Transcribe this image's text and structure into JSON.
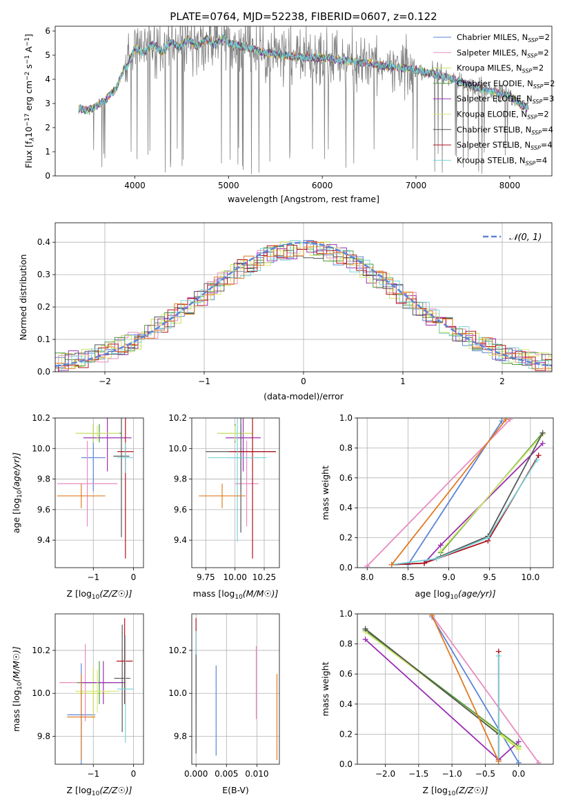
{
  "figure": {
    "title": "PLATE=0764, MJD=52238, FIBERID=0607, z=0.122"
  },
  "colors": {
    "Chabrier MILES": "#5b84d6",
    "Salpeter MILES": "#e88ac0",
    "Kroupa MILES": "#c6e05a",
    "Chabrier ELODIE": "#4f9a3a",
    "Salpeter ELODIE": "#9a2fb3",
    "Kroupa ELODIE": "#d7e77a",
    "Chabrier STELIB": "#555555",
    "Salpeter STELIB": "#b3101b",
    "Kroupa STELIB": "#76d3d9",
    "data": "#808080",
    "normal": "#5b84d6",
    "extra": "#e07a22"
  },
  "chart_data": [
    {
      "id": "spectrum",
      "type": "line",
      "xlabel": "wavelength [Angstrom, rest frame]",
      "ylabel": "Flux [f_λ 10^-17 erg cm^-2 s^-1 A^-1]",
      "xlim": [
        3150,
        8450
      ],
      "ylim": [
        0,
        6.2
      ],
      "xticks": [
        4000,
        5000,
        6000,
        7000,
        8000
      ],
      "yticks": [
        0,
        1,
        2,
        3,
        4,
        5,
        6
      ],
      "legend_loc": "upper right",
      "legend": [
        {
          "name": "Chabrier MILES",
          "sub": "SSP",
          "n": "2"
        },
        {
          "name": "Salpeter MILES",
          "sub": "SSP",
          "n": "2"
        },
        {
          "name": "Kroupa MILES",
          "sub": "SSP",
          "n": "2"
        },
        {
          "name": "Chabrier ELODIE",
          "sub": "SSP",
          "n": "2"
        },
        {
          "name": "Salpeter ELODIE",
          "sub": "SSP",
          "n": "3"
        },
        {
          "name": "Kroupa ELODIE",
          "sub": "SSP",
          "n": "2"
        },
        {
          "name": "Chabrier STELIB",
          "sub": "SSP",
          "n": "4"
        },
        {
          "name": "Salpeter STELIB",
          "sub": "SSP",
          "n": "4"
        },
        {
          "name": "Kroupa STELIB",
          "sub": "SSP",
          "n": "4"
        }
      ],
      "continuum": {
        "x": [
          3400,
          3500,
          3600,
          3700,
          3800,
          3900,
          4000,
          4100,
          4300,
          4500,
          4700,
          4900,
          5000,
          5200,
          5400,
          5600,
          5800,
          6000,
          6200,
          6400,
          6600,
          6800,
          7000,
          7200,
          7400,
          7600,
          7800,
          8000,
          8100,
          8200
        ],
        "y": [
          2.8,
          2.7,
          2.9,
          3.2,
          3.6,
          4.6,
          5.1,
          5.3,
          5.3,
          5.5,
          5.5,
          5.6,
          5.5,
          5.3,
          5.1,
          5.0,
          4.9,
          4.9,
          4.8,
          4.7,
          4.6,
          4.5,
          4.4,
          4.2,
          4.0,
          3.7,
          3.5,
          3.3,
          3.0,
          2.8
        ]
      }
    },
    {
      "id": "residuals",
      "type": "histogram",
      "xlabel": "(data-model)/error",
      "ylabel": "Normed distribution",
      "xlim": [
        -2.5,
        2.5
      ],
      "ylim": [
        0,
        0.46
      ],
      "xticks": [
        -2,
        -1,
        0,
        1,
        2
      ],
      "yticks": [
        0.0,
        0.1,
        0.2,
        0.3,
        0.4
      ],
      "legend_label": "N(0,1)",
      "legend_loc": "upper right",
      "grid": true
    },
    {
      "id": "age_vs_Z",
      "type": "scatter",
      "xlabel": "Z [log10(Z/Z☉)]",
      "ylabel": "age  [log10(age/yr)]",
      "xlim": [
        -1.95,
        0.25
      ],
      "ylim": [
        9.22,
        10.2
      ],
      "xticks": [
        -1,
        0
      ],
      "yticks": [
        9.4,
        9.6,
        9.8,
        10.0,
        10.2
      ],
      "points": [
        {
          "model": "Chabrier MILES",
          "x": -1.0,
          "xerr": 0.3,
          "y": 9.94,
          "yerr": 0.22
        },
        {
          "model": "Salpeter MILES",
          "x": -1.15,
          "xerr": 0.75,
          "y": 9.77,
          "yerr": 0.28
        },
        {
          "model": "Kroupa MILES",
          "x": -1.0,
          "xerr": 0.3,
          "y": 10.1,
          "yerr": 0.06
        },
        {
          "model": "Chabrier ELODIE",
          "x": -0.85,
          "xerr": 0.55,
          "y": 10.1,
          "yerr": 0.06
        },
        {
          "model": "Salpeter ELODIE",
          "x": -0.65,
          "xerr": 0.6,
          "y": 10.07,
          "yerr": 0.22
        },
        {
          "model": "Kroupa ELODIE",
          "x": -0.9,
          "xerr": 0.55,
          "y": 10.1,
          "yerr": 0.05
        },
        {
          "model": "Chabrier STELIB",
          "x": -0.3,
          "xerr": 0.2,
          "y": 9.95,
          "yerr": 0.53
        },
        {
          "model": "Salpeter STELIB",
          "x": -0.2,
          "xerr": 0.2,
          "y": 9.98,
          "yerr": 0.7
        },
        {
          "model": "Kroupa STELIB",
          "x": -0.2,
          "xerr": 0.2,
          "y": 9.94,
          "yerr": 0.1
        },
        {
          "model": "extra",
          "x": -1.3,
          "xerr": 0.6,
          "y": 9.69,
          "yerr": 0.08
        }
      ]
    },
    {
      "id": "age_vs_mass",
      "type": "scatter",
      "xlabel": "mass [log10(M/M☉)]",
      "ylabel": "",
      "xlim": [
        9.63,
        10.38
      ],
      "ylim": [
        9.22,
        10.2
      ],
      "xticks": [
        9.75,
        10.0,
        10.25
      ],
      "yticks": [
        9.4,
        9.6,
        9.8,
        10.0,
        10.2
      ],
      "points": [
        {
          "model": "Chabrier MILES",
          "x": 10.05,
          "xerr": 0.1,
          "y": 9.94,
          "yerr": 0.22
        },
        {
          "model": "Salpeter MILES",
          "x": 10.1,
          "xerr": 0.1,
          "y": 9.77,
          "yerr": 0.28
        },
        {
          "model": "Kroupa MILES",
          "x": 10.0,
          "xerr": 0.15,
          "y": 10.1,
          "yerr": 0.06
        },
        {
          "model": "Chabrier ELODIE",
          "x": 10.0,
          "xerr": 0.15,
          "y": 10.1,
          "yerr": 0.06
        },
        {
          "model": "Salpeter ELODIE",
          "x": 10.07,
          "xerr": 0.15,
          "y": 10.07,
          "yerr": 0.22
        },
        {
          "model": "Kroupa ELODIE",
          "x": 10.0,
          "xerr": 0.15,
          "y": 10.1,
          "yerr": 0.05
        },
        {
          "model": "Chabrier STELIB",
          "x": 10.05,
          "xerr": 0.3,
          "y": 9.98,
          "yerr": 0.53
        },
        {
          "model": "Salpeter STELIB",
          "x": 10.15,
          "xerr": 0.2,
          "y": 9.98,
          "yerr": 0.7
        },
        {
          "model": "Kroupa STELIB",
          "x": 10.02,
          "xerr": 0.25,
          "y": 9.94,
          "yerr": 0.55
        },
        {
          "model": "extra",
          "x": 9.89,
          "xerr": 0.2,
          "y": 9.69,
          "yerr": 0.08
        }
      ]
    },
    {
      "id": "weight_vs_age",
      "type": "line",
      "xlabel": "age  [log10(age/yr)]",
      "ylabel": "mass weight",
      "xlim": [
        7.88,
        10.28
      ],
      "ylim": [
        0,
        1.0
      ],
      "xticks": [
        8.0,
        8.5,
        9.0,
        9.5,
        10.0
      ],
      "yticks": [
        0.0,
        0.2,
        0.4,
        0.6,
        0.8,
        1.0
      ],
      "series": [
        {
          "model": "Chabrier MILES",
          "x": [
            8.5,
            9.65
          ],
          "y": [
            0.02,
            0.98
          ]
        },
        {
          "model": "Salpeter MILES",
          "x": [
            8.0,
            9.75
          ],
          "y": [
            0.01,
            0.99
          ]
        },
        {
          "model": "Kroupa MILES",
          "x": [
            8.9,
            10.15
          ],
          "y": [
            0.1,
            0.9
          ]
        },
        {
          "model": "Chabrier ELODIE",
          "x": [
            8.9,
            10.15
          ],
          "y": [
            0.1,
            0.9
          ]
        },
        {
          "model": "Salpeter ELODIE",
          "x": [
            8.7,
            8.9,
            10.15
          ],
          "y": [
            0.03,
            0.15,
            0.83
          ]
        },
        {
          "model": "Kroupa ELODIE",
          "x": [
            8.9,
            10.15
          ],
          "y": [
            0.11,
            0.89
          ]
        },
        {
          "model": "Chabrier STELIB",
          "x": [
            8.3,
            8.7,
            9.48,
            10.15
          ],
          "y": [
            0.02,
            0.03,
            0.21,
            0.9
          ]
        },
        {
          "model": "Salpeter STELIB",
          "x": [
            8.3,
            8.7,
            9.48,
            10.1
          ],
          "y": [
            0.02,
            0.03,
            0.18,
            0.75
          ]
        },
        {
          "model": "Kroupa STELIB",
          "x": [
            8.3,
            8.85,
            9.48,
            10.08
          ],
          "y": [
            0.02,
            0.06,
            0.2,
            0.72
          ]
        },
        {
          "model": "extra",
          "x": [
            8.3,
            9.7
          ],
          "y": [
            0.02,
            0.99
          ]
        }
      ]
    },
    {
      "id": "mass_vs_Z",
      "type": "scatter",
      "xlabel": "Z [log10(Z/Z☉)]",
      "ylabel": "mass [log10(M/M☉)]",
      "xlim": [
        -1.95,
        0.25
      ],
      "ylim": [
        9.67,
        10.37
      ],
      "xticks": [
        -1,
        0
      ],
      "yticks": [
        9.8,
        10.0,
        10.2
      ],
      "points": [
        {
          "model": "Chabrier MILES",
          "x": -1.3,
          "xerr": 0.35,
          "y": 9.9,
          "yerr": 0.24
        },
        {
          "model": "Salpeter MILES",
          "x": -1.2,
          "xerr": 0.65,
          "y": 10.05,
          "yerr": 0.18
        },
        {
          "model": "Kroupa MILES",
          "x": -1.0,
          "xerr": 0.4,
          "y": 10.0,
          "yerr": 0.12
        },
        {
          "model": "Chabrier ELODIE",
          "x": -0.85,
          "xerr": 0.55,
          "y": 10.05,
          "yerr": 0.1
        },
        {
          "model": "Salpeter ELODIE",
          "x": -0.75,
          "xerr": 0.55,
          "y": 10.05,
          "yerr": 0.1
        },
        {
          "model": "Kroupa ELODIE",
          "x": -0.9,
          "xerr": 0.55,
          "y": 10.01,
          "yerr": 0.1
        },
        {
          "model": "Chabrier STELIB",
          "x": -0.28,
          "xerr": 0.2,
          "y": 10.07,
          "yerr": 0.25
        },
        {
          "model": "Salpeter STELIB",
          "x": -0.22,
          "xerr": 0.2,
          "y": 10.15,
          "yerr": 0.2
        },
        {
          "model": "Kroupa STELIB",
          "x": -0.2,
          "xerr": 0.2,
          "y": 10.02,
          "yerr": 0.25
        },
        {
          "model": "extra",
          "x": -1.3,
          "xerr": 0.35,
          "y": 9.89,
          "yerr": 0.2
        }
      ]
    },
    {
      "id": "mass_vs_EBV",
      "type": "scatter",
      "xlabel": "E(B-V)",
      "ylabel": "",
      "xlim": [
        -0.0007,
        0.0137
      ],
      "ylim": [
        9.67,
        10.37
      ],
      "xticks": [
        0.0,
        0.005,
        0.01
      ],
      "xticklabels": [
        "0.000",
        "0.005",
        "0.010"
      ],
      "yticks": [
        9.8,
        10.0,
        10.2
      ],
      "points": [
        {
          "model": "Chabrier MILES",
          "x": 0.0033,
          "y": 9.92,
          "yerr": 0.21
        },
        {
          "model": "Salpeter MILES",
          "x": 0.0099,
          "y": 10.05,
          "yerr": 0.17
        },
        {
          "model": "Salpeter STELIB",
          "x": 0.0,
          "y": 10.15,
          "yerr": 0.2
        },
        {
          "model": "Kroupa STELIB",
          "x": 0.0,
          "y": 10.02,
          "yerr": 0.27
        },
        {
          "model": "Chabrier STELIB",
          "x": 0.0,
          "y": 9.95,
          "yerr": 0.23
        },
        {
          "model": "extra",
          "x": 0.0133,
          "y": 9.89,
          "yerr": 0.2
        }
      ]
    },
    {
      "id": "weight_vs_Z",
      "type": "line",
      "xlabel": "Z [log10(Z/Z☉)]",
      "ylabel": "mass weight",
      "xlim": [
        -2.42,
        0.52
      ],
      "ylim": [
        0,
        1.0
      ],
      "xticks": [
        -2.0,
        -1.5,
        -1.0,
        -0.5,
        0.0
      ],
      "yticks": [
        0.0,
        0.2,
        0.4,
        0.6,
        0.8,
        1.0
      ],
      "series": [
        {
          "model": "Chabrier MILES",
          "x": [
            -1.3,
            0.0
          ],
          "y": [
            0.98,
            0.01
          ]
        },
        {
          "model": "Salpeter MILES",
          "x": [
            -1.3,
            0.3
          ],
          "y": [
            0.99,
            0.01
          ]
        },
        {
          "model": "Kroupa MILES",
          "x": [
            -2.3,
            0.0
          ],
          "y": [
            0.9,
            0.1
          ]
        },
        {
          "model": "Chabrier ELODIE",
          "x": [
            -2.3,
            0.0
          ],
          "y": [
            0.89,
            0.12
          ]
        },
        {
          "model": "Salpeter ELODIE",
          "x": [
            -2.3,
            -0.3,
            0.0
          ],
          "y": [
            0.83,
            0.03,
            0.15
          ]
        },
        {
          "model": "Kroupa ELODIE",
          "x": [
            -2.3,
            0.0
          ],
          "y": [
            0.88,
            0.11
          ]
        },
        {
          "model": "Chabrier STELIB",
          "x": [
            -2.3,
            -0.3,
            -0.3
          ],
          "y": [
            0.9,
            0.2,
            0.02
          ]
        },
        {
          "model": "Salpeter STELIB",
          "x": [
            -0.3,
            -0.3
          ],
          "y": [
            0.75,
            0.02
          ]
        },
        {
          "model": "Kroupa STELIB",
          "x": [
            -0.3,
            -0.3
          ],
          "y": [
            0.72,
            0.02
          ]
        },
        {
          "model": "extra",
          "x": [
            -1.3,
            -0.3
          ],
          "y": [
            0.99,
            0.02
          ]
        }
      ]
    }
  ]
}
